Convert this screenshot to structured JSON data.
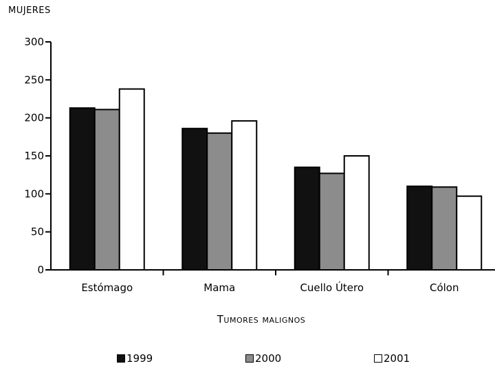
{
  "chart_data": {
    "type": "bar",
    "title": "",
    "ylabel": "MUJERES",
    "xlabel": "Tumores malignos",
    "categories": [
      "Estómago",
      "Mama",
      "Cuello Útero",
      "Cólon"
    ],
    "ylim": [
      0,
      300
    ],
    "yticks": [
      0,
      50,
      100,
      150,
      200,
      250,
      300
    ],
    "grid": false,
    "legend_position": "bottom",
    "series": [
      {
        "name": "1999",
        "color": "#111111",
        "values": [
          213,
          186,
          135,
          110
        ]
      },
      {
        "name": "2000",
        "color": "#8c8c8c",
        "values": [
          211,
          180,
          127,
          109
        ]
      },
      {
        "name": "2001",
        "color": "#ffffff",
        "values": [
          238,
          196,
          150,
          97
        ]
      }
    ]
  }
}
